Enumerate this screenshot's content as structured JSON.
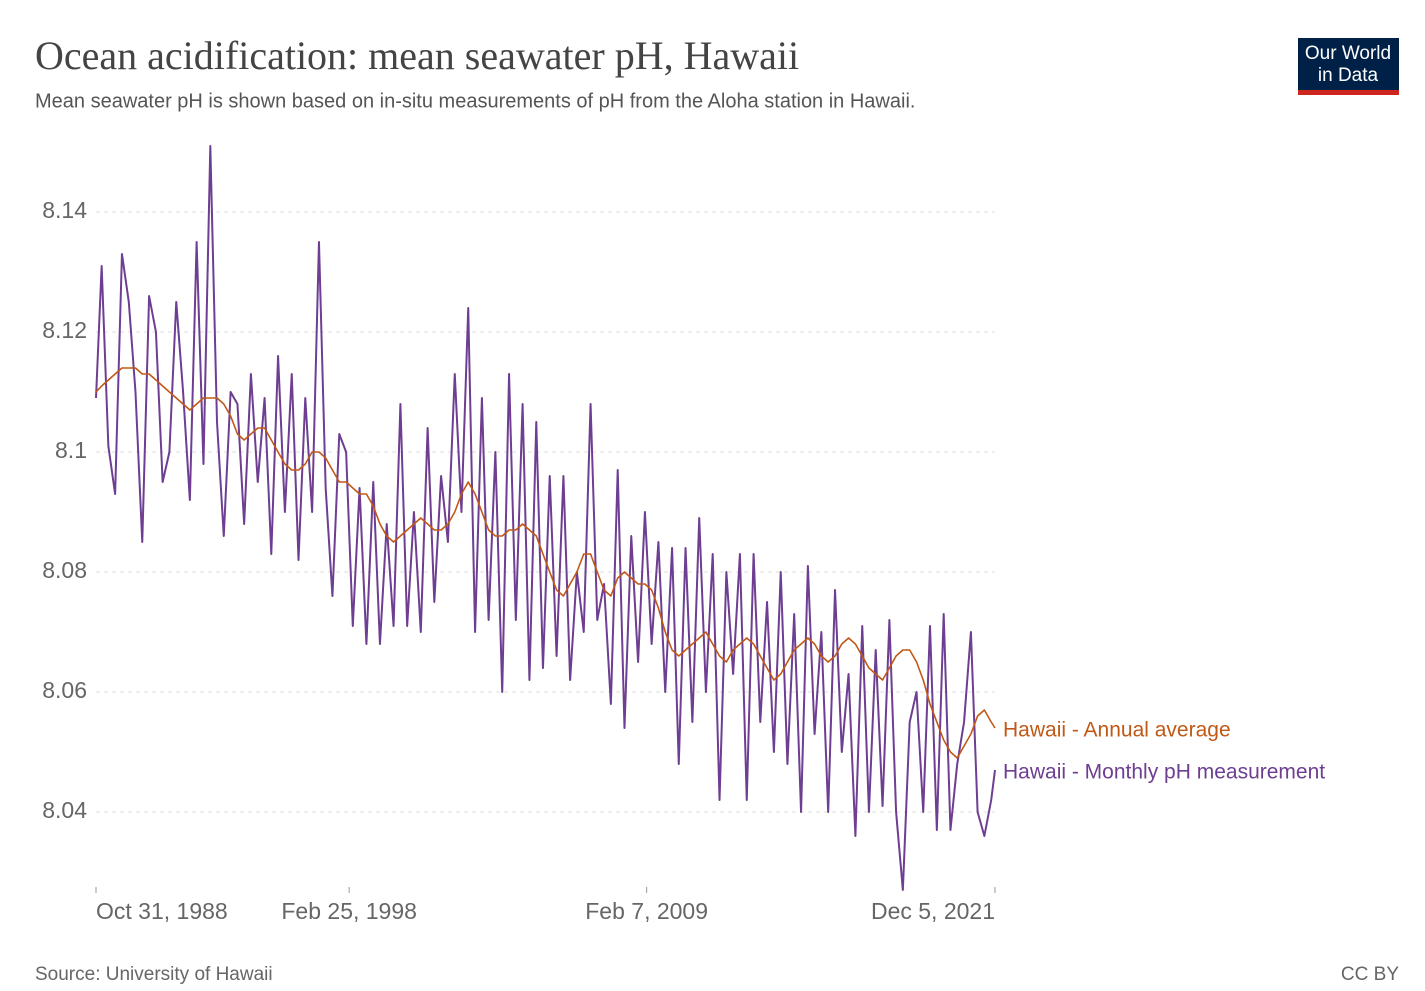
{
  "chart_data": {
    "type": "line",
    "title": "Ocean acidification: mean seawater pH, Hawaii",
    "subtitle": "Mean seawater pH is shown based on in-situ measurements of pH from the Aloha station in Hawaii.",
    "source": "Source: University of Hawaii",
    "license": "CC BY",
    "logo": [
      "Our World",
      "in Data"
    ],
    "x": [
      "1988-10-31",
      "1989-01-15",
      "1989-04-15",
      "1989-07-15",
      "1989-10-15",
      "1990-01-15",
      "1990-04-15",
      "1990-07-15",
      "1990-10-15",
      "1991-01-15",
      "1991-04-15",
      "1991-07-15",
      "1991-10-15",
      "1992-01-15",
      "1992-04-15",
      "1992-07-15",
      "1992-10-15",
      "1993-01-15",
      "1993-04-15",
      "1993-07-15",
      "1993-10-15",
      "1994-01-15",
      "1994-04-15",
      "1994-07-15",
      "1994-10-15",
      "1995-01-15",
      "1995-04-15",
      "1995-07-15",
      "1995-10-15",
      "1996-01-15",
      "1996-04-15",
      "1996-07-15",
      "1996-10-15",
      "1997-01-15",
      "1997-04-15",
      "1997-07-15",
      "1997-10-15",
      "1998-01-15",
      "1998-04-15",
      "1998-07-15",
      "1998-10-15",
      "1999-01-15",
      "1999-04-15",
      "1999-07-15",
      "1999-10-15",
      "2000-01-15",
      "2000-04-15",
      "2000-07-15",
      "2000-10-15",
      "2001-01-15",
      "2001-04-15",
      "2001-07-15",
      "2001-10-15",
      "2002-01-15",
      "2002-04-15",
      "2002-07-15",
      "2002-10-15",
      "2003-01-15",
      "2003-04-15",
      "2003-07-15",
      "2003-10-15",
      "2004-01-15",
      "2004-04-15",
      "2004-07-15",
      "2004-10-15",
      "2005-01-15",
      "2005-04-15",
      "2005-07-15",
      "2005-10-15",
      "2006-01-15",
      "2006-04-15",
      "2006-07-15",
      "2006-10-15",
      "2007-01-15",
      "2007-04-15",
      "2007-07-15",
      "2007-10-15",
      "2008-01-15",
      "2008-04-15",
      "2008-07-15",
      "2008-10-15",
      "2009-01-15",
      "2009-04-15",
      "2009-07-15",
      "2009-10-15",
      "2010-01-15",
      "2010-04-15",
      "2010-07-15",
      "2010-10-15",
      "2011-01-15",
      "2011-04-15",
      "2011-07-15",
      "2011-10-15",
      "2012-01-15",
      "2012-04-15",
      "2012-07-15",
      "2012-10-15",
      "2013-01-15",
      "2013-04-15",
      "2013-07-15",
      "2013-10-15",
      "2014-01-15",
      "2014-04-15",
      "2014-07-15",
      "2014-10-15",
      "2015-01-15",
      "2015-04-15",
      "2015-07-15",
      "2015-10-15",
      "2016-01-15",
      "2016-04-15",
      "2016-07-15",
      "2016-10-15",
      "2017-01-15",
      "2017-04-15",
      "2017-07-15",
      "2017-10-15",
      "2018-01-15",
      "2018-04-15",
      "2018-07-15",
      "2018-10-15",
      "2019-01-15",
      "2019-04-15",
      "2019-07-15",
      "2019-10-15",
      "2020-01-15",
      "2020-04-15",
      "2020-07-15",
      "2020-10-15",
      "2021-01-15",
      "2021-04-15",
      "2021-07-15",
      "2021-10-15",
      "2021-12-05"
    ],
    "series": [
      {
        "name": "Hawaii - Annual average",
        "color": "#c05917",
        "values": [
          8.11,
          8.111,
          8.112,
          8.113,
          8.114,
          8.114,
          8.114,
          8.113,
          8.113,
          8.112,
          8.111,
          8.11,
          8.109,
          8.108,
          8.107,
          8.108,
          8.109,
          8.109,
          8.109,
          8.108,
          8.106,
          8.103,
          8.102,
          8.103,
          8.104,
          8.104,
          8.102,
          8.1,
          8.098,
          8.097,
          8.097,
          8.098,
          8.1,
          8.1,
          8.099,
          8.097,
          8.095,
          8.095,
          8.094,
          8.093,
          8.093,
          8.091,
          8.088,
          8.086,
          8.085,
          8.086,
          8.087,
          8.088,
          8.089,
          8.088,
          8.087,
          8.087,
          8.088,
          8.09,
          8.093,
          8.095,
          8.093,
          8.09,
          8.087,
          8.086,
          8.086,
          8.087,
          8.087,
          8.088,
          8.087,
          8.086,
          8.083,
          8.08,
          8.077,
          8.076,
          8.078,
          8.08,
          8.083,
          8.083,
          8.08,
          8.077,
          8.076,
          8.079,
          8.08,
          8.079,
          8.078,
          8.078,
          8.077,
          8.074,
          8.07,
          8.067,
          8.066,
          8.067,
          8.068,
          8.069,
          8.07,
          8.068,
          8.066,
          8.065,
          8.067,
          8.068,
          8.069,
          8.068,
          8.066,
          8.064,
          8.062,
          8.063,
          8.065,
          8.067,
          8.068,
          8.069,
          8.068,
          8.066,
          8.065,
          8.066,
          8.068,
          8.069,
          8.068,
          8.066,
          8.064,
          8.063,
          8.062,
          8.064,
          8.066,
          8.067,
          8.067,
          8.065,
          8.062,
          8.058,
          8.055,
          8.052,
          8.05,
          8.049,
          8.051,
          8.053,
          8.056,
          8.057,
          8.055,
          8.054
        ]
      },
      {
        "name": "Hawaii - Monthly pH measurement",
        "color": "#6d3e91",
        "values": [
          8.109,
          8.131,
          8.101,
          8.093,
          8.133,
          8.125,
          8.11,
          8.085,
          8.126,
          8.12,
          8.095,
          8.1,
          8.125,
          8.11,
          8.092,
          8.135,
          8.098,
          8.151,
          8.105,
          8.086,
          8.11,
          8.108,
          8.088,
          8.113,
          8.095,
          8.109,
          8.083,
          8.116,
          8.09,
          8.113,
          8.082,
          8.109,
          8.09,
          8.135,
          8.094,
          8.076,
          8.103,
          8.1,
          8.071,
          8.094,
          8.068,
          8.095,
          8.068,
          8.088,
          8.071,
          8.108,
          8.071,
          8.09,
          8.07,
          8.104,
          8.075,
          8.096,
          8.085,
          8.113,
          8.09,
          8.124,
          8.07,
          8.109,
          8.072,
          8.1,
          8.06,
          8.113,
          8.072,
          8.108,
          8.062,
          8.105,
          8.064,
          8.096,
          8.066,
          8.096,
          8.062,
          8.08,
          8.07,
          8.108,
          8.072,
          8.078,
          8.058,
          8.097,
          8.054,
          8.086,
          8.065,
          8.09,
          8.068,
          8.085,
          8.06,
          8.084,
          8.048,
          8.084,
          8.055,
          8.089,
          8.06,
          8.083,
          8.042,
          8.08,
          8.063,
          8.083,
          8.042,
          8.083,
          8.055,
          8.075,
          8.05,
          8.08,
          8.048,
          8.073,
          8.04,
          8.081,
          8.053,
          8.07,
          8.04,
          8.077,
          8.05,
          8.063,
          8.036,
          8.071,
          8.04,
          8.067,
          8.041,
          8.072,
          8.04,
          8.027,
          8.055,
          8.06,
          8.04,
          8.071,
          8.037,
          8.073,
          8.037,
          8.048,
          8.055,
          8.07,
          8.04,
          8.036,
          8.042,
          8.047
        ]
      }
    ],
    "xlim": [
      "1988-10-31",
      "2021-12-05"
    ],
    "xticks": [
      {
        "value": "1988-10-31",
        "label": "Oct 31, 1988"
      },
      {
        "value": "1998-02-25",
        "label": "Feb 25, 1998"
      },
      {
        "value": "2009-02-07",
        "label": "Feb 7, 2009"
      },
      {
        "value": "2021-12-05",
        "label": "Dec 5, 2021"
      }
    ],
    "ylim": [
      8.0275,
      8.152
    ],
    "yticks": [
      8.04,
      8.06,
      8.08,
      8.1,
      8.12,
      8.14
    ],
    "grid": true
  }
}
